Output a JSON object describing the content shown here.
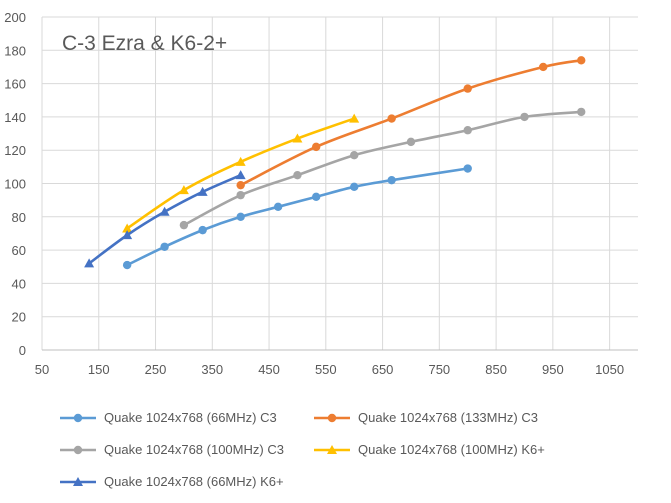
{
  "chart_data": {
    "type": "line",
    "title": "C-3 Ezra & K6-2+",
    "xlabel": "",
    "ylabel": "",
    "xlim": [
      50,
      1100
    ],
    "ylim": [
      0,
      200
    ],
    "xticks": [
      "50",
      "150",
      "250",
      "350",
      "450",
      "550",
      "650",
      "750",
      "850",
      "950",
      "1050"
    ],
    "xtick_values": [
      50,
      150,
      250,
      350,
      450,
      550,
      650,
      750,
      850,
      950,
      1050
    ],
    "yticks": [
      "0",
      "20",
      "40",
      "60",
      "80",
      "100",
      "120",
      "140",
      "160",
      "180",
      "200"
    ],
    "ytick_values": [
      0,
      20,
      40,
      60,
      80,
      100,
      120,
      140,
      160,
      180,
      200
    ],
    "grid": true,
    "legend_position": "bottom",
    "series": [
      {
        "name": "Quake 1024x768 (66MHz) C3",
        "color": "#5B9BD5",
        "marker": "circle",
        "x": [
          200,
          266,
          333,
          400,
          466,
          533,
          600,
          666,
          800
        ],
        "y": [
          51,
          62,
          72,
          80,
          86,
          92,
          98,
          102,
          109
        ]
      },
      {
        "name": "Quake 1024x768 (133MHz) C3",
        "color": "#ED7D31",
        "marker": "circle",
        "x": [
          400,
          533,
          666,
          800,
          933,
          1000
        ],
        "y": [
          99,
          122,
          139,
          157,
          170,
          174
        ]
      },
      {
        "name": "Quake 1024x768 (100MHz) C3",
        "color": "#A5A5A5",
        "marker": "circle",
        "x": [
          300,
          400,
          500,
          600,
          700,
          800,
          900,
          1000
        ],
        "y": [
          75,
          93,
          105,
          117,
          125,
          132,
          140,
          143
        ]
      },
      {
        "name": "Quake 1024x768 (100MHz) K6+",
        "color": "#FFC000",
        "marker": "triangle",
        "x": [
          200,
          300,
          400,
          500,
          600
        ],
        "y": [
          73,
          96,
          113,
          127,
          139
        ]
      },
      {
        "name": "Quake 1024x768 (66MHz) K6+",
        "color": "#4472C4",
        "marker": "triangle",
        "x": [
          133,
          200,
          266,
          333,
          400
        ],
        "y": [
          52,
          69,
          83,
          95,
          105
        ]
      }
    ]
  }
}
